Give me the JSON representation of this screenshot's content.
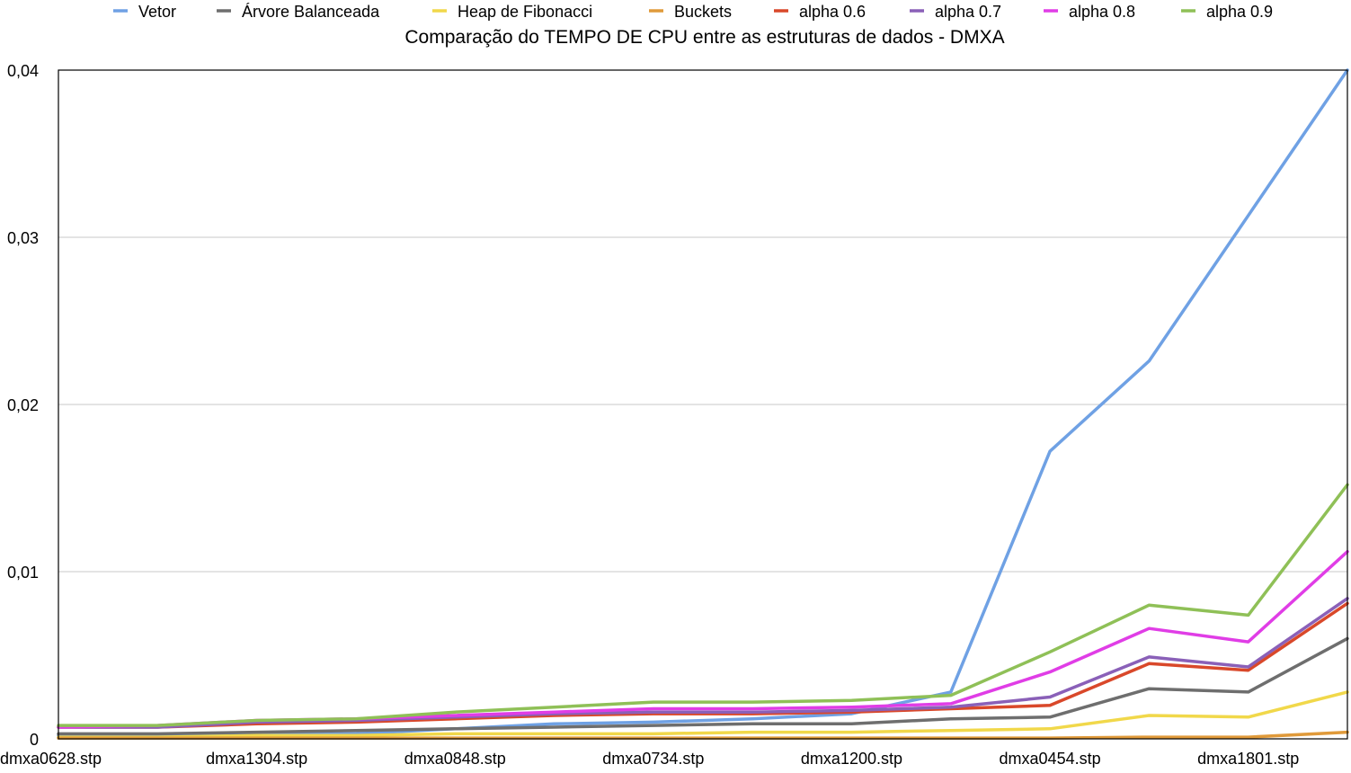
{
  "chart_data": {
    "type": "line",
    "title": "Comparação do TEMPO DE CPU entre as estruturas de dados - DMXA",
    "xlabel": "",
    "ylabel": "",
    "ylim": [
      0,
      0.04
    ],
    "y_ticks": [
      "0",
      "0,01",
      "0,02",
      "0,03",
      "0,04"
    ],
    "y_tick_values": [
      0,
      0.01,
      0.02,
      0.03,
      0.04
    ],
    "grid": true,
    "legend_position": "top",
    "point_count": 14,
    "x_tick_labels": [
      "dmxa0628.stp",
      "dmxa1304.stp",
      "dmxa0848.stp",
      "dmxa0734.stp",
      "dmxa1200.stp",
      "dmxa0454.stp",
      "dmxa1801.stp"
    ],
    "x_tick_indices": [
      0,
      2,
      4,
      6,
      8,
      10,
      12
    ],
    "series": [
      {
        "name": "Vetor",
        "color": "#6fa1e4",
        "values": [
          0.0002,
          0.0002,
          0.0003,
          0.0003,
          0.0006,
          0.0009,
          0.001,
          0.0012,
          0.0015,
          0.0028,
          0.0172,
          0.0226,
          0.0313,
          0.04
        ]
      },
      {
        "name": "Árvore Balanceada",
        "color": "#6e6e6e",
        "values": [
          0.0003,
          0.0003,
          0.0004,
          0.0005,
          0.0006,
          0.0007,
          0.0008,
          0.0009,
          0.0009,
          0.0012,
          0.0013,
          0.003,
          0.0028,
          0.006
        ]
      },
      {
        "name": "Heap de Fibonacci",
        "color": "#f1d84a",
        "values": [
          0.0001,
          0.0001,
          0.0002,
          0.0002,
          0.0003,
          0.0003,
          0.0003,
          0.0004,
          0.0004,
          0.0005,
          0.0006,
          0.0014,
          0.0013,
          0.0028
        ]
      },
      {
        "name": "Buckets",
        "color": "#e09a3a",
        "values": [
          5e-05,
          5e-05,
          5e-05,
          5e-05,
          5e-05,
          5e-05,
          5e-05,
          5e-05,
          5e-05,
          5e-05,
          5e-05,
          0.0001,
          0.0001,
          0.0004
        ]
      },
      {
        "name": "alpha 0.6",
        "color": "#d9482a",
        "values": [
          0.0007,
          0.0007,
          0.0009,
          0.001,
          0.0012,
          0.0014,
          0.0015,
          0.0015,
          0.0016,
          0.0018,
          0.002,
          0.0045,
          0.0041,
          0.0081
        ]
      },
      {
        "name": "alpha 0.7",
        "color": "#8a60b8",
        "values": [
          0.0007,
          0.0007,
          0.001,
          0.0011,
          0.0013,
          0.0015,
          0.0016,
          0.0016,
          0.0017,
          0.0019,
          0.0025,
          0.0049,
          0.0043,
          0.0084
        ]
      },
      {
        "name": "alpha 0.8",
        "color": "#e03de6",
        "values": [
          0.0007,
          0.0008,
          0.0011,
          0.0012,
          0.0014,
          0.0016,
          0.0018,
          0.0018,
          0.0019,
          0.0021,
          0.004,
          0.0066,
          0.0058,
          0.0112
        ]
      },
      {
        "name": "alpha 0.9",
        "color": "#8fc057",
        "values": [
          0.0008,
          0.0008,
          0.0011,
          0.0012,
          0.0016,
          0.0019,
          0.0022,
          0.0022,
          0.0023,
          0.0026,
          0.0052,
          0.008,
          0.0074,
          0.0152
        ]
      }
    ]
  }
}
